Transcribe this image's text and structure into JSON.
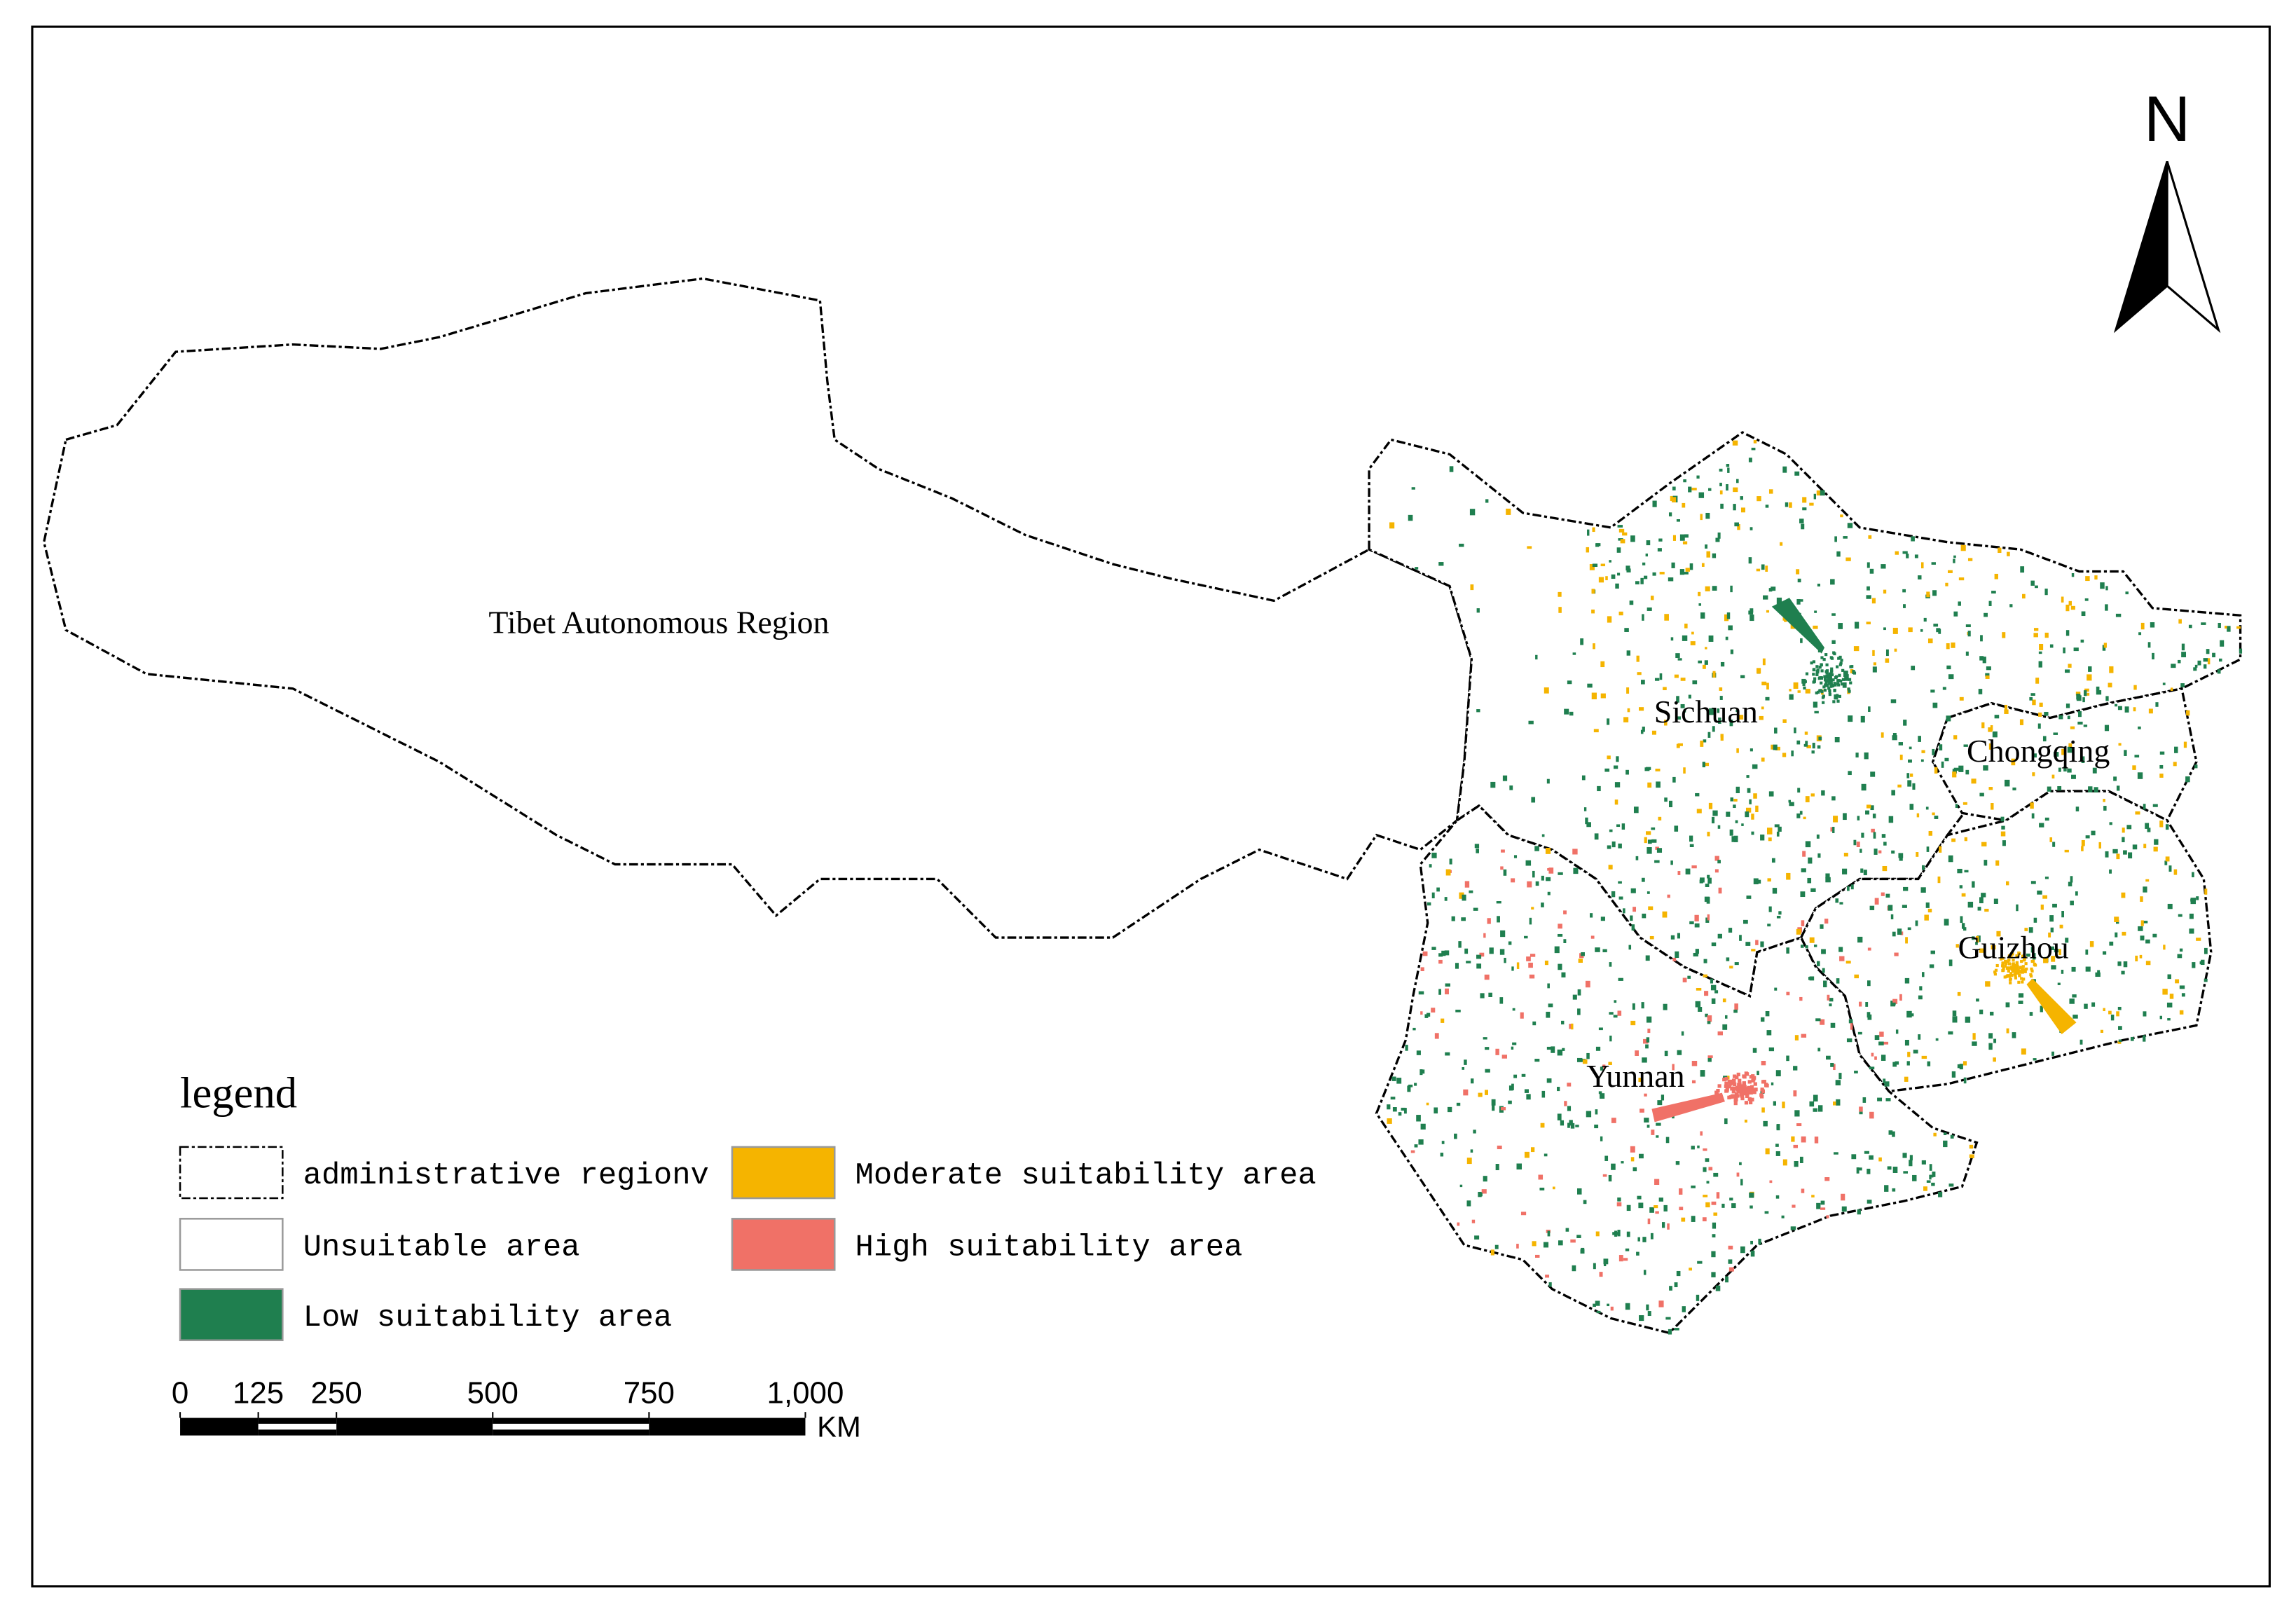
{
  "north_label": "N",
  "regions": [
    "Tibet Autonomous Region",
    "Sichuan",
    "Chongqing",
    "Guizhou",
    "Yunnan"
  ],
  "legend": {
    "title": "legend",
    "items": [
      {
        "label": "administrative regionv",
        "color": "#ffffff"
      },
      {
        "label": "Unsuitable area",
        "color": "#ffffff"
      },
      {
        "label": "Low suitability area",
        "color": "#1f7f4f"
      },
      {
        "label": "Moderate suitability area",
        "color": "#f5b400"
      },
      {
        "label": "High suitability area",
        "color": "#f07167"
      }
    ]
  },
  "scale_bar": {
    "ticks": [
      0,
      125,
      250,
      500,
      750,
      {
        "value": 1000,
        "label": "1,000"
      }
    ],
    "unit": "KM"
  }
}
